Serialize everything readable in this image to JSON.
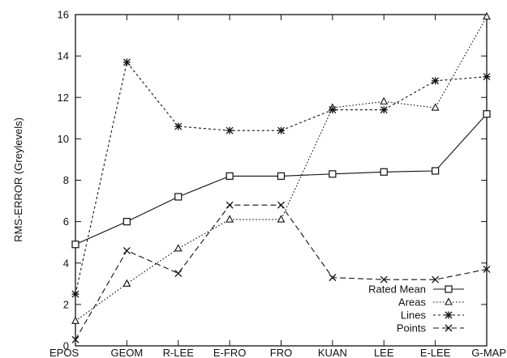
{
  "chart_data": {
    "type": "line",
    "title": "",
    "xlabel": "",
    "ylabel": "RMS-ERROR (Greylevels)",
    "categories": [
      "EPOS",
      "GEOM",
      "R-LEE",
      "E-FRO",
      "FRO",
      "KUAN",
      "LEE",
      "E-LEE",
      "G-MAP"
    ],
    "ylim": [
      0,
      16
    ],
    "yticks": [
      0,
      2,
      4,
      6,
      8,
      10,
      12,
      14,
      16
    ],
    "grid": false,
    "legend_position": "bottom-right",
    "series": [
      {
        "name": "Rated Mean",
        "marker": "square",
        "line": "solid",
        "values": [
          4.9,
          6.0,
          7.2,
          8.2,
          8.2,
          8.3,
          8.4,
          8.45,
          11.2
        ]
      },
      {
        "name": "Areas",
        "marker": "triangle",
        "line": "dotted",
        "values": [
          1.2,
          3.0,
          4.7,
          6.1,
          6.1,
          11.5,
          11.8,
          11.5,
          15.9
        ]
      },
      {
        "name": "Lines",
        "marker": "asterisk",
        "line": "short-dash",
        "values": [
          2.5,
          13.7,
          10.6,
          10.4,
          10.4,
          11.4,
          11.4,
          12.8,
          13.0
        ]
      },
      {
        "name": "Points",
        "marker": "cross",
        "line": "long-dash",
        "values": [
          0.3,
          4.6,
          3.5,
          6.8,
          6.8,
          3.3,
          3.2,
          3.2,
          3.7
        ]
      }
    ]
  }
}
